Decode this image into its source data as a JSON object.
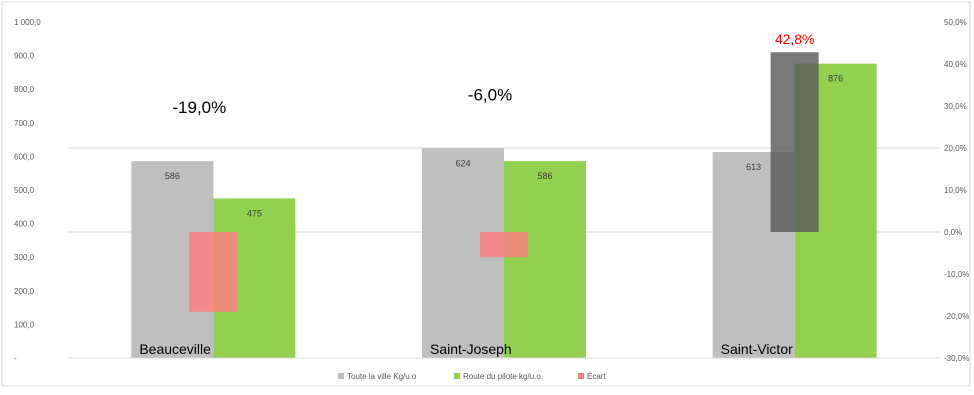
{
  "chart_data": {
    "type": "bar",
    "categories": [
      "Beauceville",
      "Saint-Joseph",
      "Saint-Victor"
    ],
    "series": [
      {
        "name": "Toute la ville Kg/u.o",
        "axis": "left",
        "values": [
          586,
          624,
          613
        ],
        "color": "#bfbfbf"
      },
      {
        "name": "Route du pilote kg/u.o.",
        "axis": "left",
        "values": [
          475,
          586,
          876
        ],
        "color": "#92d050"
      },
      {
        "name": "Écart",
        "axis": "right",
        "values": [
          -19.0,
          -6.0,
          42.8
        ],
        "colors": [
          "#ff7c80",
          "#ff7c80",
          "#595959"
        ],
        "opacity": 0.8
      }
    ],
    "data_labels": {
      "left_series": [
        "586",
        "624",
        "613",
        "475",
        "586",
        "876"
      ],
      "ecart": [
        "-19,0%",
        "-6,0%",
        "42,8%"
      ],
      "ecart_colors": [
        "#000000",
        "#000000",
        "#ff0000"
      ]
    },
    "y_left": {
      "ylim": [
        0,
        1000
      ],
      "ticks": [
        0,
        100,
        200,
        300,
        400,
        500,
        600,
        700,
        800,
        900,
        1000
      ],
      "tick_labels": [
        "-",
        "100,0",
        "200,0",
        "300,0",
        "400,0",
        "500,0",
        "600,0",
        "700,0",
        "800,0",
        "900,0",
        "1 000,0"
      ]
    },
    "y_right": {
      "ylim": [
        -30,
        50
      ],
      "ticks": [
        -30,
        -20,
        -10,
        0,
        10,
        20,
        30,
        40,
        50
      ],
      "tick_labels": [
        "-30,0%",
        "-20,0%",
        "-10,0%",
        "0,0%",
        "10,0%",
        "20,0%",
        "30,0%",
        "40,0%",
        "50,0%"
      ]
    },
    "gridlines": {
      "right_axis": [
        -30,
        0,
        20
      ]
    },
    "legend": {
      "position": "bottom",
      "entries": [
        "Toute la ville Kg/u.o",
        "Route du pilote kg/u.o.",
        "Écart"
      ],
      "colors": [
        "#bfbfbf",
        "#92d050",
        "#ff7c80"
      ]
    }
  }
}
